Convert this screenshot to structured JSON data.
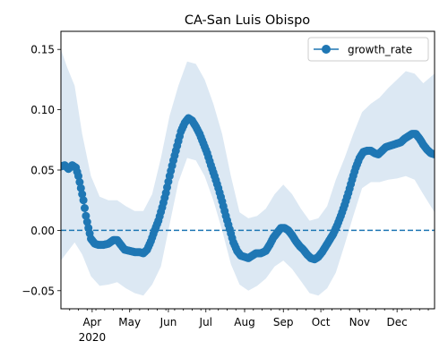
{
  "chart_data": {
    "type": "line",
    "title": "CA-San Luis Obispo",
    "xlabel": "",
    "ylabel": "",
    "x_axis": {
      "start": "2020-03-07",
      "end": "2020-12-31",
      "ticks": [
        {
          "date": "2020-04-01",
          "label": "Apr",
          "sublabel": "2020"
        },
        {
          "date": "2020-05-01",
          "label": "May"
        },
        {
          "date": "2020-06-01",
          "label": "Jun"
        },
        {
          "date": "2020-07-01",
          "label": "Jul"
        },
        {
          "date": "2020-08-01",
          "label": "Aug"
        },
        {
          "date": "2020-09-01",
          "label": "Sep"
        },
        {
          "date": "2020-10-01",
          "label": "Oct"
        },
        {
          "date": "2020-11-01",
          "label": "Nov"
        },
        {
          "date": "2020-12-01",
          "label": "Dec"
        }
      ]
    },
    "ylim": [
      -0.065,
      0.165
    ],
    "y_ticks": [
      {
        "value": -0.05,
        "label": "−0.05"
      },
      {
        "value": 0.0,
        "label": "0.00"
      },
      {
        "value": 0.05,
        "label": "0.05"
      },
      {
        "value": 0.1,
        "label": "0.10"
      },
      {
        "value": 0.15,
        "label": "0.15"
      }
    ],
    "legend": {
      "placement": "upper-right",
      "label": "growth_rate"
    },
    "colors": {
      "series": "#1f77b4",
      "band": "#dce8f3",
      "reference": "#1f77b4"
    },
    "reference_line": {
      "y": 0.0,
      "style": "dashed"
    },
    "series": [
      {
        "name": "growth_rate",
        "marker": "circle",
        "points": [
          [
            "2020-03-07",
            0.053
          ],
          [
            "2020-03-10",
            0.054
          ],
          [
            "2020-03-13",
            0.051
          ],
          [
            "2020-03-16",
            0.054
          ],
          [
            "2020-03-19",
            0.052
          ],
          [
            "2020-03-21",
            0.045
          ],
          [
            "2020-03-23",
            0.035
          ],
          [
            "2020-03-25",
            0.025
          ],
          [
            "2020-03-27",
            0.012
          ],
          [
            "2020-03-29",
            0.002
          ],
          [
            "2020-03-31",
            -0.007
          ],
          [
            "2020-04-03",
            -0.011
          ],
          [
            "2020-04-06",
            -0.012
          ],
          [
            "2020-04-10",
            -0.012
          ],
          [
            "2020-04-14",
            -0.011
          ],
          [
            "2020-04-18",
            -0.008
          ],
          [
            "2020-04-21",
            -0.008
          ],
          [
            "2020-04-24",
            -0.012
          ],
          [
            "2020-04-27",
            -0.016
          ],
          [
            "2020-05-01",
            -0.017
          ],
          [
            "2020-05-05",
            -0.018
          ],
          [
            "2020-05-09",
            -0.018
          ],
          [
            "2020-05-12",
            -0.019
          ],
          [
            "2020-05-15",
            -0.016
          ],
          [
            "2020-05-18",
            -0.009
          ],
          [
            "2020-05-21",
            0.0
          ],
          [
            "2020-05-24",
            0.008
          ],
          [
            "2020-05-27",
            0.019
          ],
          [
            "2020-05-30",
            0.031
          ],
          [
            "2020-06-02",
            0.045
          ],
          [
            "2020-06-05",
            0.058
          ],
          [
            "2020-06-08",
            0.07
          ],
          [
            "2020-06-11",
            0.082
          ],
          [
            "2020-06-14",
            0.089
          ],
          [
            "2020-06-17",
            0.093
          ],
          [
            "2020-06-20",
            0.091
          ],
          [
            "2020-06-23",
            0.086
          ],
          [
            "2020-06-26",
            0.08
          ],
          [
            "2020-06-29",
            0.072
          ],
          [
            "2020-07-02",
            0.064
          ],
          [
            "2020-07-05",
            0.054
          ],
          [
            "2020-07-08",
            0.045
          ],
          [
            "2020-07-11",
            0.035
          ],
          [
            "2020-07-14",
            0.024
          ],
          [
            "2020-07-17",
            0.012
          ],
          [
            "2020-07-20",
            0.001
          ],
          [
            "2020-07-23",
            -0.01
          ],
          [
            "2020-07-26",
            -0.017
          ],
          [
            "2020-07-29",
            -0.021
          ],
          [
            "2020-08-01",
            -0.022
          ],
          [
            "2020-08-04",
            -0.023
          ],
          [
            "2020-08-07",
            -0.021
          ],
          [
            "2020-08-10",
            -0.019
          ],
          [
            "2020-08-14",
            -0.019
          ],
          [
            "2020-08-18",
            -0.017
          ],
          [
            "2020-08-21",
            -0.012
          ],
          [
            "2020-08-24",
            -0.006
          ],
          [
            "2020-08-27",
            -0.002
          ],
          [
            "2020-08-30",
            0.002
          ],
          [
            "2020-09-02",
            0.002
          ],
          [
            "2020-09-05",
            0.0
          ],
          [
            "2020-09-08",
            -0.004
          ],
          [
            "2020-09-11",
            -0.009
          ],
          [
            "2020-09-14",
            -0.013
          ],
          [
            "2020-09-17",
            -0.016
          ],
          [
            "2020-09-20",
            -0.02
          ],
          [
            "2020-09-23",
            -0.023
          ],
          [
            "2020-09-26",
            -0.024
          ],
          [
            "2020-09-29",
            -0.022
          ],
          [
            "2020-10-02",
            -0.018
          ],
          [
            "2020-10-05",
            -0.013
          ],
          [
            "2020-10-08",
            -0.008
          ],
          [
            "2020-10-11",
            -0.003
          ],
          [
            "2020-10-14",
            0.004
          ],
          [
            "2020-10-17",
            0.012
          ],
          [
            "2020-10-20",
            0.021
          ],
          [
            "2020-10-23",
            0.031
          ],
          [
            "2020-10-26",
            0.042
          ],
          [
            "2020-10-29",
            0.052
          ],
          [
            "2020-11-01",
            0.06
          ],
          [
            "2020-11-04",
            0.065
          ],
          [
            "2020-11-07",
            0.066
          ],
          [
            "2020-11-10",
            0.066
          ],
          [
            "2020-11-13",
            0.064
          ],
          [
            "2020-11-16",
            0.063
          ],
          [
            "2020-11-19",
            0.066
          ],
          [
            "2020-11-22",
            0.069
          ],
          [
            "2020-11-25",
            0.07
          ],
          [
            "2020-11-28",
            0.071
          ],
          [
            "2020-12-01",
            0.072
          ],
          [
            "2020-12-04",
            0.073
          ],
          [
            "2020-12-07",
            0.076
          ],
          [
            "2020-12-10",
            0.078
          ],
          [
            "2020-12-13",
            0.08
          ],
          [
            "2020-12-16",
            0.08
          ],
          [
            "2020-12-19",
            0.076
          ],
          [
            "2020-12-22",
            0.071
          ],
          [
            "2020-12-25",
            0.067
          ],
          [
            "2020-12-28",
            0.064
          ],
          [
            "2020-12-31",
            0.063
          ]
        ]
      }
    ],
    "band": {
      "points": [
        [
          "2020-03-07",
          -0.025,
          0.15
        ],
        [
          "2020-03-12",
          -0.018,
          0.135
        ],
        [
          "2020-03-18",
          -0.01,
          0.12
        ],
        [
          "2020-03-24",
          -0.02,
          0.08
        ],
        [
          "2020-03-31",
          -0.038,
          0.045
        ],
        [
          "2020-04-07",
          -0.046,
          0.028
        ],
        [
          "2020-04-14",
          -0.045,
          0.025
        ],
        [
          "2020-04-21",
          -0.043,
          0.025
        ],
        [
          "2020-04-28",
          -0.048,
          0.02
        ],
        [
          "2020-05-05",
          -0.052,
          0.016
        ],
        [
          "2020-05-12",
          -0.054,
          0.016
        ],
        [
          "2020-05-19",
          -0.045,
          0.03
        ],
        [
          "2020-05-26",
          -0.03,
          0.06
        ],
        [
          "2020-06-02",
          0.005,
          0.095
        ],
        [
          "2020-06-09",
          0.04,
          0.12
        ],
        [
          "2020-06-16",
          0.06,
          0.14
        ],
        [
          "2020-06-23",
          0.058,
          0.138
        ],
        [
          "2020-06-30",
          0.045,
          0.125
        ],
        [
          "2020-07-07",
          0.025,
          0.105
        ],
        [
          "2020-07-14",
          0.0,
          0.08
        ],
        [
          "2020-07-21",
          -0.028,
          0.045
        ],
        [
          "2020-07-28",
          -0.045,
          0.015
        ],
        [
          "2020-08-04",
          -0.05,
          0.01
        ],
        [
          "2020-08-11",
          -0.046,
          0.012
        ],
        [
          "2020-08-18",
          -0.04,
          0.018
        ],
        [
          "2020-08-25",
          -0.03,
          0.03
        ],
        [
          "2020-09-01",
          -0.025,
          0.038
        ],
        [
          "2020-09-08",
          -0.032,
          0.03
        ],
        [
          "2020-09-15",
          -0.042,
          0.018
        ],
        [
          "2020-09-22",
          -0.052,
          0.008
        ],
        [
          "2020-09-29",
          -0.054,
          0.01
        ],
        [
          "2020-10-06",
          -0.048,
          0.02
        ],
        [
          "2020-10-13",
          -0.035,
          0.042
        ],
        [
          "2020-10-20",
          -0.012,
          0.06
        ],
        [
          "2020-10-27",
          0.012,
          0.08
        ],
        [
          "2020-11-03",
          0.035,
          0.098
        ],
        [
          "2020-11-10",
          0.04,
          0.105
        ],
        [
          "2020-11-17",
          0.04,
          0.11
        ],
        [
          "2020-11-24",
          0.042,
          0.118
        ],
        [
          "2020-12-01",
          0.043,
          0.125
        ],
        [
          "2020-12-08",
          0.045,
          0.132
        ],
        [
          "2020-12-15",
          0.042,
          0.13
        ],
        [
          "2020-12-22",
          0.03,
          0.122
        ],
        [
          "2020-12-31",
          0.015,
          0.13
        ]
      ]
    }
  }
}
